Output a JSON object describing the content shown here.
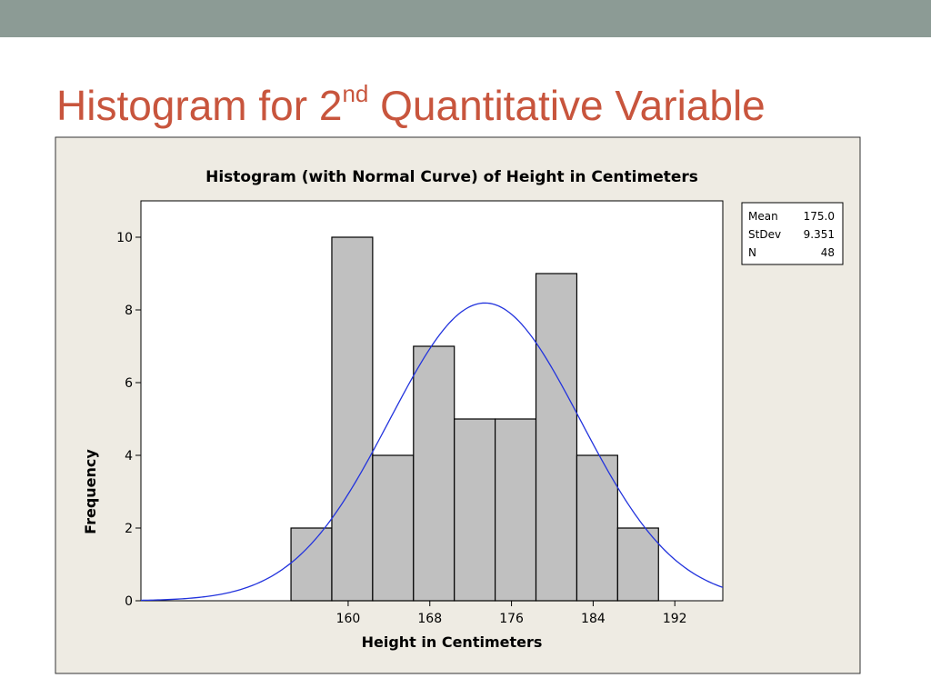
{
  "slide": {
    "title_main": "Histogram for 2",
    "title_sup": "nd",
    "title_rest": "Quantitative Variable",
    "accent_color": "#c8553d",
    "top_bar_color": "#8c9b95"
  },
  "chart_data": {
    "type": "bar",
    "variant": "histogram-with-normal-curve",
    "title": "Histogram (with Normal Curve) of Height in Centimeters",
    "xlabel": "Height in Centimeters",
    "ylabel": "Frequency",
    "bins": [
      {
        "start": 156,
        "end": 160,
        "count": 2
      },
      {
        "start": 160,
        "end": 164,
        "count": 10
      },
      {
        "start": 164,
        "end": 168,
        "count": 4
      },
      {
        "start": 168,
        "end": 172,
        "count": 7
      },
      {
        "start": 172,
        "end": 176,
        "count": 5
      },
      {
        "start": 176,
        "end": 180,
        "count": 5
      },
      {
        "start": 180,
        "end": 184,
        "count": 9
      },
      {
        "start": 184,
        "end": 188,
        "count": 4
      },
      {
        "start": 188,
        "end": 192,
        "count": 2
      }
    ],
    "xlim": [
      141.3,
      198.3
    ],
    "ylim": [
      0,
      11.0
    ],
    "x_ticks": [
      160,
      168,
      176,
      184,
      192
    ],
    "y_ticks": [
      0,
      2,
      4,
      6,
      8,
      10
    ],
    "x_tick_offset": 1.6,
    "normal_curve": {
      "mean": 175.0,
      "stdev": 9.351,
      "n": 48,
      "color": "#2233dd"
    },
    "stats_box": [
      {
        "label": "Mean",
        "value": "175.0"
      },
      {
        "label": "StDev",
        "value": "9.351"
      },
      {
        "label": "N",
        "value": "48"
      }
    ],
    "legend_position": "top-right",
    "grid": false,
    "bar_color": "#c0c0c0",
    "background_color": "#eeebe3"
  }
}
